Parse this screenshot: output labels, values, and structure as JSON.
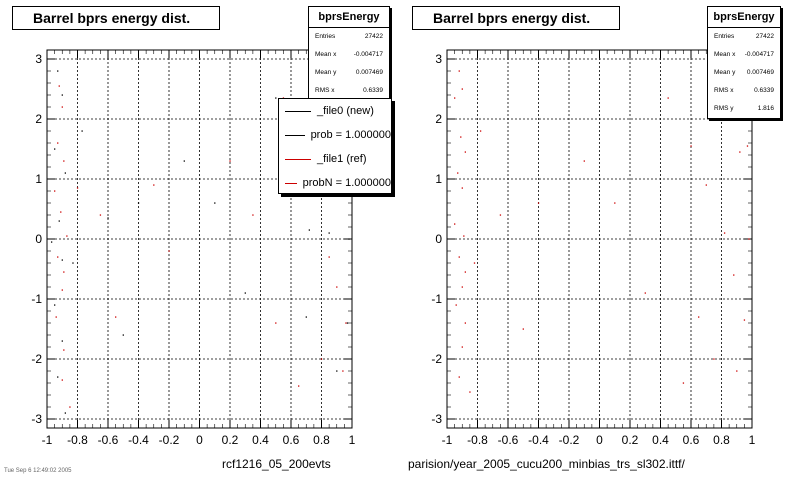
{
  "left": {
    "title": "Barrel bprs energy dist.",
    "stats": {
      "name": "bprsEnergy",
      "rows": [
        {
          "label": "Entries",
          "value": "27422"
        },
        {
          "label": "Mean x",
          "value": "-0.004717"
        },
        {
          "label": "Mean y",
          "value": "0.007469"
        },
        {
          "label": "RMS x",
          "value": "0.6339"
        }
      ]
    },
    "legend": [
      {
        "label": "_file0 (new)",
        "color": "#000000"
      },
      {
        "label": "prob = 1.000000",
        "color": "#000000"
      },
      {
        "label": "_file1 (ref)",
        "color": "#cc0000"
      },
      {
        "label": "probN = 1.000000",
        "color": "#cc0000"
      }
    ],
    "footer": "rcf1216_05_200evts"
  },
  "right": {
    "title": "Barrel bprs energy dist.",
    "stats": {
      "name": "bprsEnergy",
      "rows": [
        {
          "label": "Entries",
          "value": "27422"
        },
        {
          "label": "Mean x",
          "value": "-0.004717"
        },
        {
          "label": "Mean y",
          "value": "0.007469"
        },
        {
          "label": "RMS x",
          "value": "0.6339"
        },
        {
          "label": "RMS y",
          "value": "1.816"
        }
      ]
    },
    "footer": "parision/year_2005_cucu200_minbias_trs_sl302.ittf/"
  },
  "footer_small": "Tue Sep 6 12:49:02 2005",
  "chart_data": [
    {
      "type": "scatter",
      "title": "Barrel bprs energy dist.",
      "xlim": [
        -1,
        1
      ],
      "ylim": [
        -3.15,
        3.15
      ],
      "xticks": [
        "-1",
        "-0.8",
        "-0.6",
        "-0.4",
        "-0.2",
        "0",
        "0.2",
        "0.4",
        "0.6",
        "0.8",
        "1"
      ],
      "yticks": [
        "-3",
        "-2",
        "-1",
        "0",
        "1",
        "2",
        "3"
      ],
      "grid": true,
      "series": [
        {
          "name": "_file0 (new)",
          "color": "#000000",
          "points": [
            [
              -0.93,
              2.8
            ],
            [
              -0.9,
              2.4
            ],
            [
              -0.95,
              1.5
            ],
            [
              -0.88,
              1.1
            ],
            [
              -0.92,
              0.3
            ],
            [
              -0.97,
              -0.05
            ],
            [
              -0.9,
              -0.35
            ],
            [
              -0.95,
              -1.1
            ],
            [
              -0.9,
              -1.7
            ],
            [
              -0.93,
              -2.3
            ],
            [
              -0.88,
              -2.9
            ],
            [
              -0.6,
              0.35
            ],
            [
              -0.5,
              -1.6
            ],
            [
              -0.4,
              0.6
            ],
            [
              -0.1,
              1.3
            ],
            [
              0.1,
              0.6
            ],
            [
              0.3,
              -0.9
            ],
            [
              0.5,
              2.35
            ],
            [
              0.6,
              -2.4
            ],
            [
              0.7,
              -1.3
            ],
            [
              0.85,
              0.1
            ],
            [
              0.95,
              1.5
            ],
            [
              0.97,
              -1.4
            ],
            [
              0.9,
              -2.2
            ],
            [
              0.98,
              0.0
            ],
            [
              -0.83,
              -0.4
            ],
            [
              -0.77,
              1.8
            ],
            [
              0.72,
              0.15
            ]
          ]
        },
        {
          "name": "_file1 (ref)",
          "color": "#cc0000",
          "points": [
            [
              -0.92,
              2.55
            ],
            [
              -0.9,
              2.2
            ],
            [
              -0.93,
              1.6
            ],
            [
              -0.89,
              1.3
            ],
            [
              -0.95,
              0.8
            ],
            [
              -0.91,
              0.45
            ],
            [
              -0.87,
              0.05
            ],
            [
              -0.93,
              -0.3
            ],
            [
              -0.89,
              -0.55
            ],
            [
              -0.9,
              -0.85
            ],
            [
              -0.94,
              -1.3
            ],
            [
              -0.89,
              -1.85
            ],
            [
              -0.9,
              -2.35
            ],
            [
              -0.65,
              0.4
            ],
            [
              -0.55,
              -1.3
            ],
            [
              -0.3,
              0.9
            ],
            [
              -0.2,
              -0.2
            ],
            [
              0.2,
              1.3
            ],
            [
              0.35,
              0.4
            ],
            [
              0.5,
              -1.4
            ],
            [
              0.55,
              2.35
            ],
            [
              0.65,
              -2.45
            ],
            [
              0.8,
              -2.0
            ],
            [
              0.85,
              -0.3
            ],
            [
              0.95,
              1.45
            ],
            [
              0.97,
              1.55
            ],
            [
              0.96,
              -1.4
            ],
            [
              0.7,
              1.0
            ],
            [
              -0.85,
              -2.8
            ],
            [
              -0.8,
              0.85
            ],
            [
              0.9,
              -0.8
            ],
            [
              0.94,
              -2.2
            ]
          ]
        }
      ]
    },
    {
      "type": "scatter",
      "title": "Barrel bprs energy dist.",
      "xlim": [
        -1,
        1
      ],
      "ylim": [
        -3.15,
        3.15
      ],
      "xticks": [
        "-1",
        "-0.8",
        "-0.6",
        "-0.4",
        "-0.2",
        "0",
        "0.2",
        "0.4",
        "0.6",
        "0.8",
        "1"
      ],
      "yticks": [
        "-3",
        "-2",
        "-1",
        "0",
        "1",
        "2",
        "3"
      ],
      "grid": true,
      "series": [
        {
          "name": "_file1 (ref)",
          "color": "#cc0000",
          "points": [
            [
              -0.92,
              2.8
            ],
            [
              -0.9,
              2.5
            ],
            [
              -0.95,
              2.35
            ],
            [
              -0.91,
              1.7
            ],
            [
              -0.88,
              1.45
            ],
            [
              -0.93,
              1.1
            ],
            [
              -0.9,
              0.85
            ],
            [
              -0.95,
              0.25
            ],
            [
              -0.89,
              0.05
            ],
            [
              -0.92,
              -0.3
            ],
            [
              -0.88,
              -0.55
            ],
            [
              -0.9,
              -0.8
            ],
            [
              -0.94,
              -1.1
            ],
            [
              -0.88,
              -1.4
            ],
            [
              -0.9,
              -1.8
            ],
            [
              -0.92,
              -2.3
            ],
            [
              -0.85,
              -2.55
            ],
            [
              -0.65,
              0.4
            ],
            [
              -0.5,
              -1.5
            ],
            [
              -0.4,
              0.6
            ],
            [
              -0.1,
              1.3
            ],
            [
              0.1,
              0.6
            ],
            [
              0.3,
              -0.9
            ],
            [
              0.45,
              2.35
            ],
            [
              0.55,
              -2.4
            ],
            [
              0.65,
              -1.3
            ],
            [
              0.75,
              -2.0
            ],
            [
              0.82,
              0.1
            ],
            [
              0.92,
              1.45
            ],
            [
              0.97,
              1.55
            ],
            [
              0.95,
              -1.35
            ],
            [
              0.9,
              -2.2
            ],
            [
              0.98,
              0.0
            ],
            [
              0.7,
              0.9
            ],
            [
              -0.82,
              -0.4
            ],
            [
              -0.78,
              1.8
            ],
            [
              0.6,
              1.55
            ],
            [
              0.88,
              -0.6
            ]
          ]
        }
      ]
    }
  ]
}
